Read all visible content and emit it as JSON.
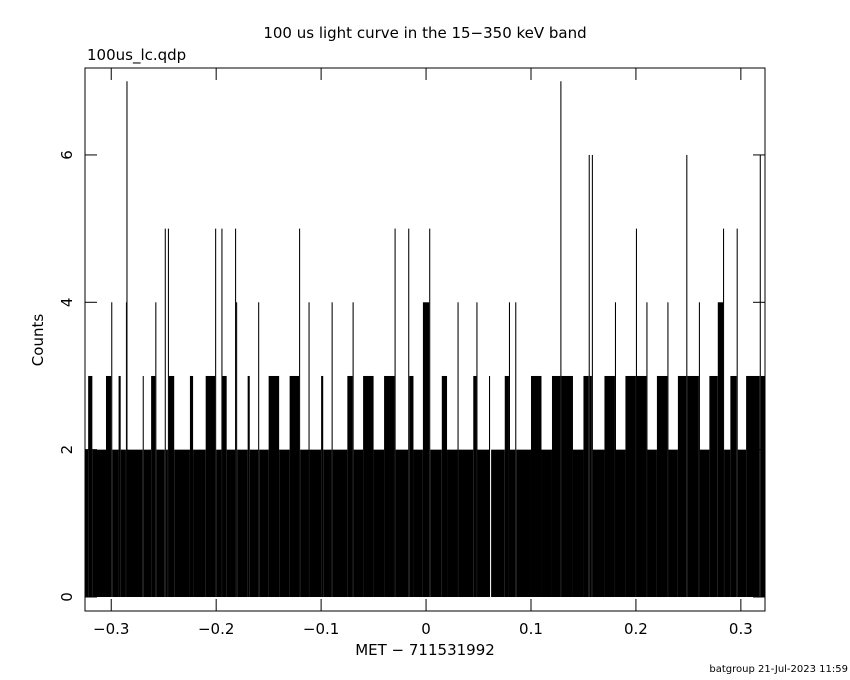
{
  "chart_data": {
    "type": "step",
    "title": "100 us light curve in the 15−350 keV band",
    "subtitle": "100us_lc.qdp",
    "xlabel": "MET − 711531992",
    "ylabel": "Counts",
    "footer": "batgroup 21-Jul-2023 11:59",
    "color": "#000000",
    "xlim": [
      -0.325,
      0.323
    ],
    "ylim": [
      -0.19,
      7.18
    ],
    "xticks": [
      {
        "value": -0.3,
        "label": "−0.3"
      },
      {
        "value": -0.2,
        "label": "−0.2"
      },
      {
        "value": -0.1,
        "label": "−0.1"
      },
      0,
      0.1,
      0.2,
      0.3
    ],
    "yticks": [
      0,
      2,
      4,
      6
    ],
    "x": [
      -0.325,
      -0.322,
      -0.318,
      -0.305,
      -0.3,
      -0.299,
      -0.293,
      -0.291,
      -0.286,
      -0.2855,
      -0.2845,
      -0.27,
      -0.269,
      -0.262,
      -0.258,
      -0.257,
      -0.249,
      -0.248,
      -0.246,
      -0.245,
      -0.24,
      -0.225,
      -0.222,
      -0.21,
      -0.201,
      -0.2,
      -0.195,
      -0.194,
      -0.19,
      -0.182,
      -0.181,
      -0.18,
      -0.17,
      -0.168,
      -0.16,
      -0.159,
      -0.15,
      -0.14,
      -0.13,
      -0.121,
      -0.12,
      -0.112,
      -0.111,
      -0.1,
      -0.098,
      -0.09,
      -0.089,
      -0.075,
      -0.07,
      -0.069,
      -0.06,
      -0.05,
      -0.04,
      -0.03,
      -0.029,
      -0.017,
      -0.016,
      -0.012,
      -0.003,
      0.003,
      0.004,
      0.015,
      0.02,
      0.03,
      0.031,
      0.045,
      0.048,
      0.049,
      0.06,
      0.061,
      0.062,
      0.075,
      0.079,
      0.08,
      0.085,
      0.086,
      0.1,
      0.11,
      0.12,
      0.128,
      0.129,
      0.14,
      0.15,
      0.155,
      0.156,
      0.158,
      0.159,
      0.17,
      0.18,
      0.181,
      0.19,
      0.2,
      0.201,
      0.21,
      0.211,
      0.22,
      0.23,
      0.231,
      0.24,
      0.248,
      0.249,
      0.26,
      0.261,
      0.27,
      0.278,
      0.283,
      0.284,
      0.29,
      0.296,
      0.297,
      0.305,
      0.318,
      0.319
    ],
    "values": [
      2,
      3,
      2,
      3,
      4,
      2,
      3,
      2,
      4,
      7,
      2,
      3,
      2,
      3,
      4,
      2,
      5,
      2,
      5,
      3,
      2,
      3,
      2,
      3,
      5,
      2,
      5,
      3,
      2,
      5,
      4,
      2,
      3,
      2,
      4,
      2,
      3,
      2,
      3,
      5,
      2,
      4,
      2,
      3,
      2,
      4,
      2,
      3,
      4,
      2,
      3,
      2,
      3,
      5,
      2,
      5,
      3,
      2,
      4,
      5,
      2,
      3,
      2,
      4,
      2,
      3,
      4,
      2,
      3,
      0,
      2,
      3,
      4,
      2,
      4,
      2,
      3,
      2,
      3,
      7,
      3,
      2,
      3,
      6,
      3,
      6,
      2,
      3,
      4,
      2,
      3,
      5,
      3,
      4,
      2,
      3,
      4,
      2,
      3,
      6,
      3,
      4,
      2,
      3,
      4,
      5,
      2,
      3,
      5,
      2,
      3,
      6,
      3
    ]
  }
}
